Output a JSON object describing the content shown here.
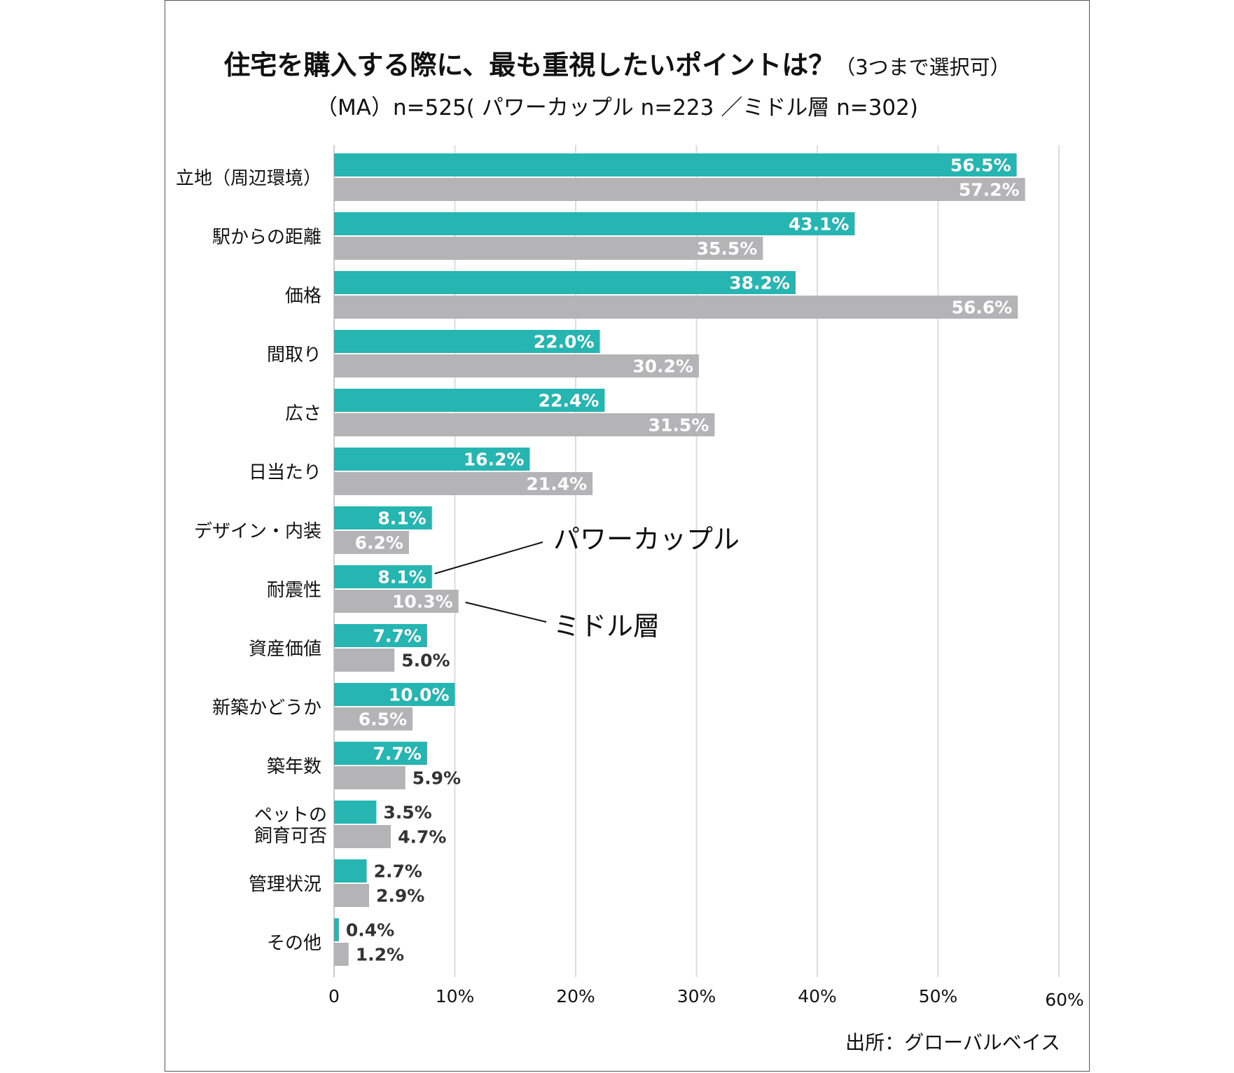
{
  "title": "住宅を購入する際に、最も重視したいポイントは？",
  "title_note": "（3つまで選択可）",
  "subtitle": "（MA）n=525( パワーカップル n=223 ／ミドル層 n=302)",
  "source": "出所：グローバルベイス",
  "chart_data": {
    "type": "bar",
    "orientation": "horizontal",
    "categories": [
      [
        "立地（周辺環境）"
      ],
      [
        "駅からの距離"
      ],
      [
        "価格"
      ],
      [
        "間取り"
      ],
      [
        "広さ"
      ],
      [
        "日当たり"
      ],
      [
        "デザイン・内装"
      ],
      [
        "耐震性"
      ],
      [
        "資産価値"
      ],
      [
        "新築かどうか"
      ],
      [
        "築年数"
      ],
      [
        "ペットの",
        "飼育可否"
      ],
      [
        "管理状況"
      ],
      [
        "その他"
      ]
    ],
    "series": [
      {
        "name": "パワーカップル",
        "color": "#26b5b1",
        "values": [
          56.5,
          43.1,
          38.2,
          22.0,
          22.4,
          16.2,
          8.1,
          8.1,
          7.7,
          10.0,
          7.7,
          3.5,
          2.7,
          0.4
        ],
        "labels": [
          "56.5%",
          "43.1%",
          "38.2%",
          "22.0%",
          "22.4%",
          "16.2%",
          "8.1%",
          "8.1%",
          "7.7%",
          "10.0%",
          "7.7%",
          "3.5%",
          "2.7%",
          "0.4%"
        ]
      },
      {
        "name": "ミドル層",
        "color": "#b4b4b6",
        "values": [
          57.2,
          35.5,
          56.6,
          30.2,
          31.5,
          21.4,
          6.2,
          10.3,
          5.0,
          6.5,
          5.9,
          4.7,
          2.9,
          1.2
        ],
        "labels": [
          "57.2%",
          "35.5%",
          "56.6%",
          "30.2%",
          "31.5%",
          "21.4%",
          "6.2%",
          "10.3%",
          "5.0%",
          "6.5%",
          "5.9%",
          "4.7%",
          "2.9%",
          "1.2%"
        ]
      }
    ],
    "xlim": [
      0,
      60
    ],
    "xticks": [
      0,
      10,
      20,
      30,
      40,
      50,
      60
    ],
    "xtick_labels": [
      "0",
      "10%",
      "20%",
      "30%",
      "40%",
      "50%",
      "60%"
    ],
    "grid": true,
    "legend": [
      "パワーカップル",
      "ミドル層"
    ]
  }
}
